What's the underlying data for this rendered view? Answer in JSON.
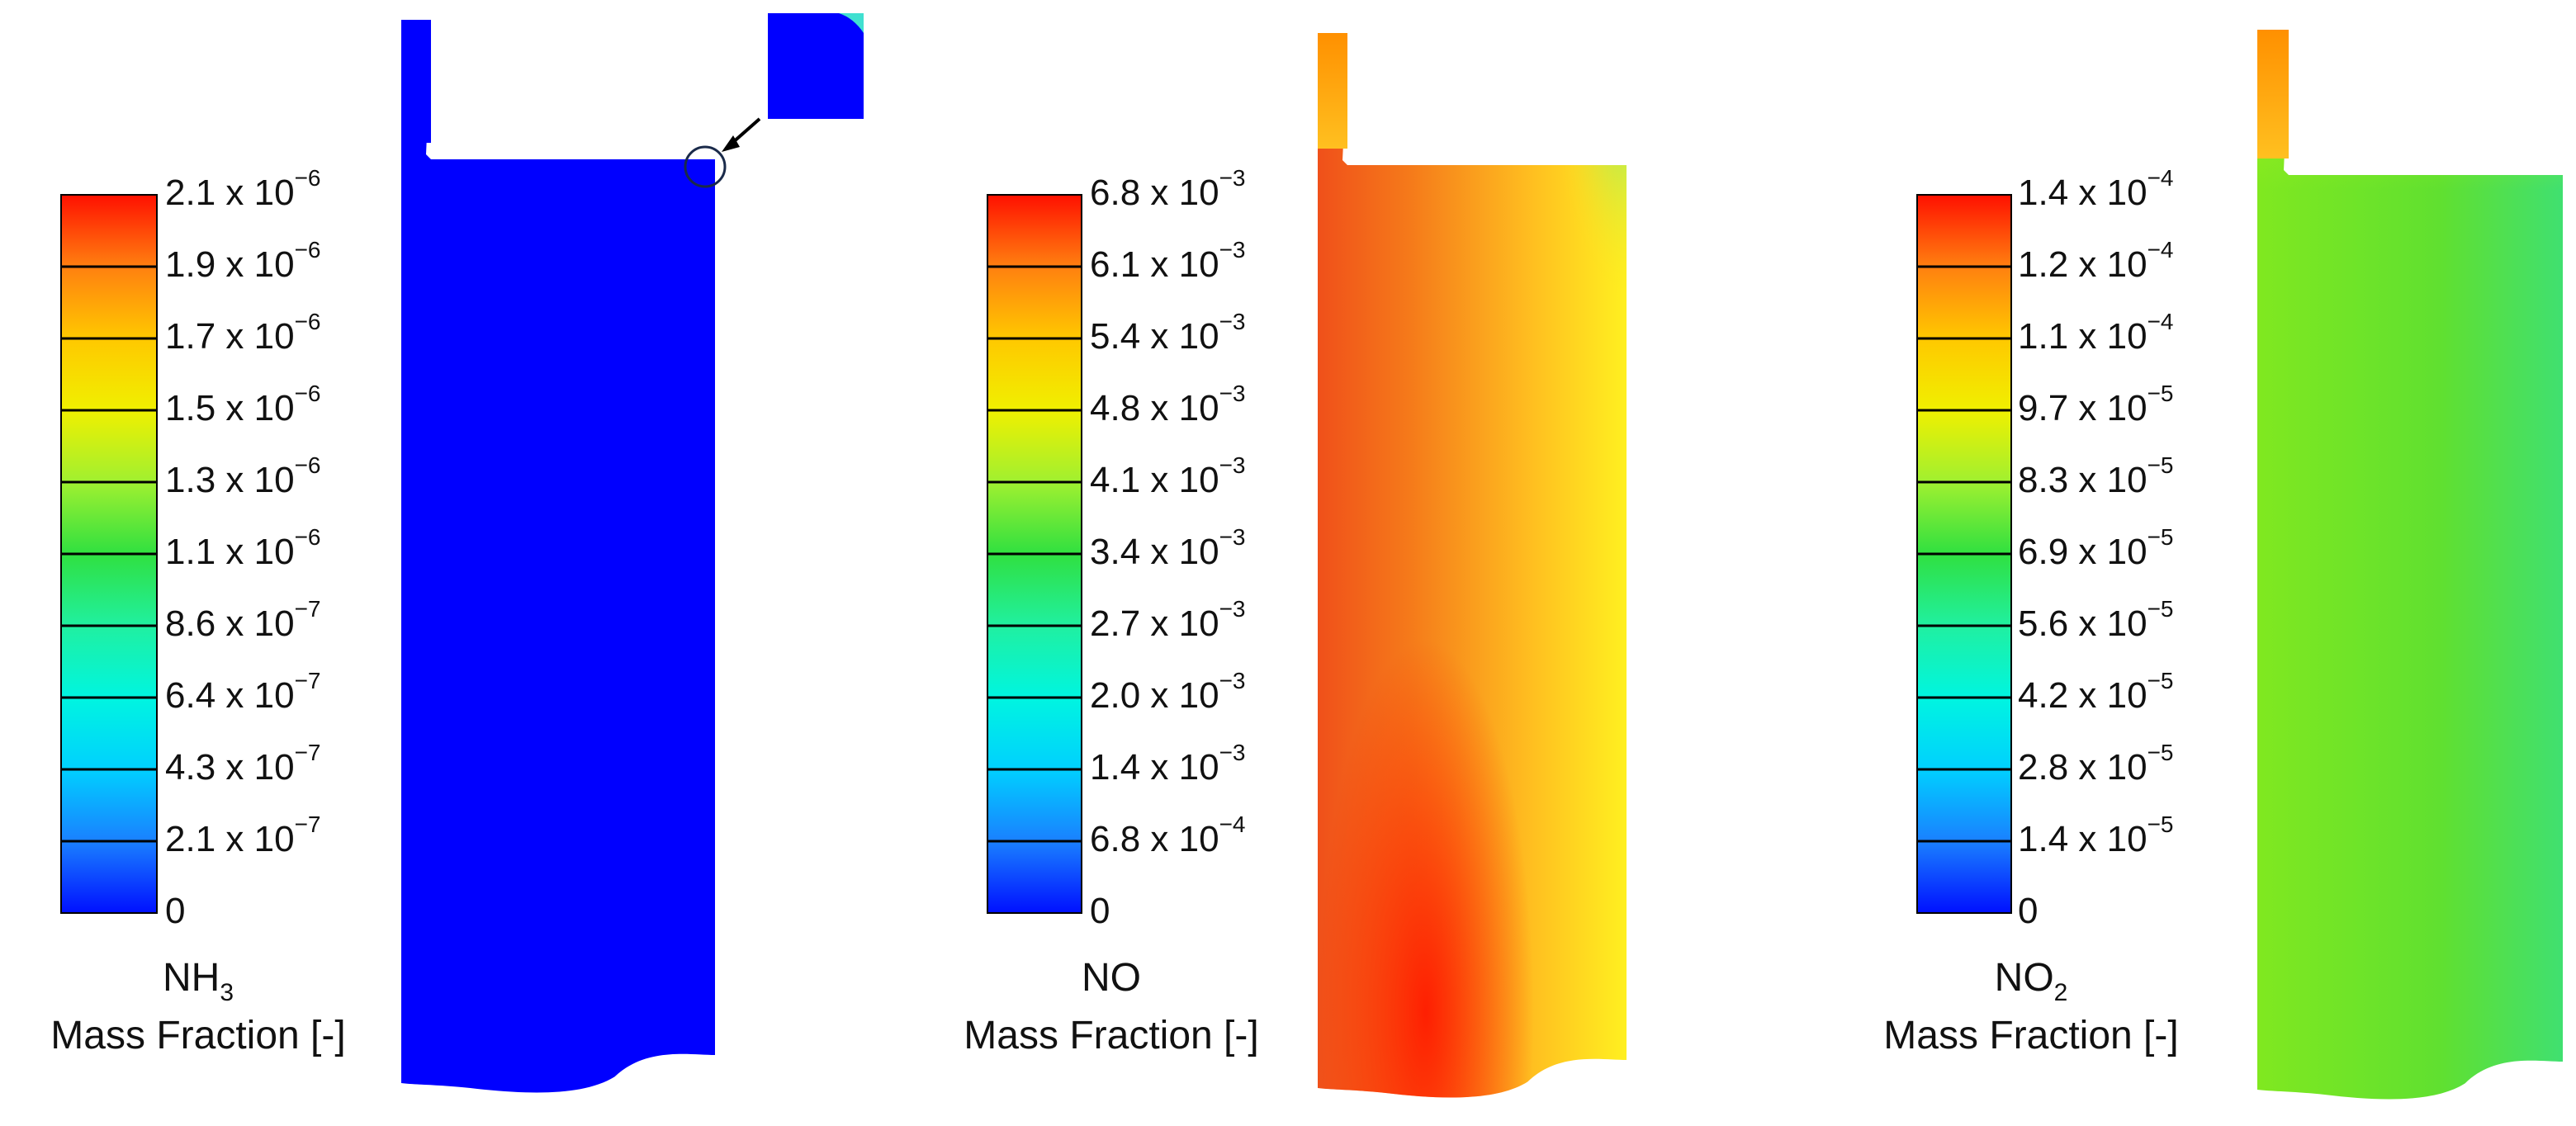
{
  "panels": [
    {
      "species": {
        "text": "NH",
        "sub": "3"
      },
      "quantity": "Mass Fraction [-]",
      "colorbar": {
        "ticks": [
          {
            "base": "2.1 x 10",
            "exp": "−6"
          },
          {
            "base": "1.9 x 10",
            "exp": "−6"
          },
          {
            "base": "1.7 x 10",
            "exp": "−6"
          },
          {
            "base": "1.5 x 10",
            "exp": "−6"
          },
          {
            "base": "1.3 x 10",
            "exp": "−6"
          },
          {
            "base": "1.1 x 10",
            "exp": "−6"
          },
          {
            "base": "8.6 x 10",
            "exp": "−7"
          },
          {
            "base": "6.4 x 10",
            "exp": "−7"
          },
          {
            "base": "4.3 x 10",
            "exp": "−7"
          },
          {
            "base": "2.1 x 10",
            "exp": "−7"
          },
          {
            "base": "0"
          }
        ]
      }
    },
    {
      "species": {
        "text": "NO"
      },
      "quantity": "Mass Fraction [-]",
      "colorbar": {
        "ticks": [
          {
            "base": "6.8 x 10",
            "exp": "−3"
          },
          {
            "base": "6.1 x 10",
            "exp": "−3"
          },
          {
            "base": "5.4 x 10",
            "exp": "−3"
          },
          {
            "base": "4.8 x 10",
            "exp": "−3"
          },
          {
            "base": "4.1 x 10",
            "exp": "−3"
          },
          {
            "base": "3.4 x 10",
            "exp": "−3"
          },
          {
            "base": "2.7 x 10",
            "exp": "−3"
          },
          {
            "base": "2.0 x 10",
            "exp": "−3"
          },
          {
            "base": "1.4 x 10",
            "exp": "−3"
          },
          {
            "base": "6.8 x 10",
            "exp": "−4"
          },
          {
            "base": "0"
          }
        ]
      }
    },
    {
      "species": {
        "text": "NO",
        "sub": "2"
      },
      "quantity": "Mass Fraction [-]",
      "colorbar": {
        "ticks": [
          {
            "base": "1.4 x 10",
            "exp": "−4"
          },
          {
            "base": "1.2 x 10",
            "exp": "−4"
          },
          {
            "base": "1.1 x 10",
            "exp": "−4"
          },
          {
            "base": "9.7 x 10",
            "exp": "−5"
          },
          {
            "base": "8.3 x 10",
            "exp": "−5"
          },
          {
            "base": "6.9 x 10",
            "exp": "−5"
          },
          {
            "base": "5.6 x 10",
            "exp": "−5"
          },
          {
            "base": "4.2 x 10",
            "exp": "−5"
          },
          {
            "base": "2.8 x 10",
            "exp": "−5"
          },
          {
            "base": "1.4 x 10",
            "exp": "−5"
          },
          {
            "base": "0"
          }
        ]
      }
    }
  ]
}
